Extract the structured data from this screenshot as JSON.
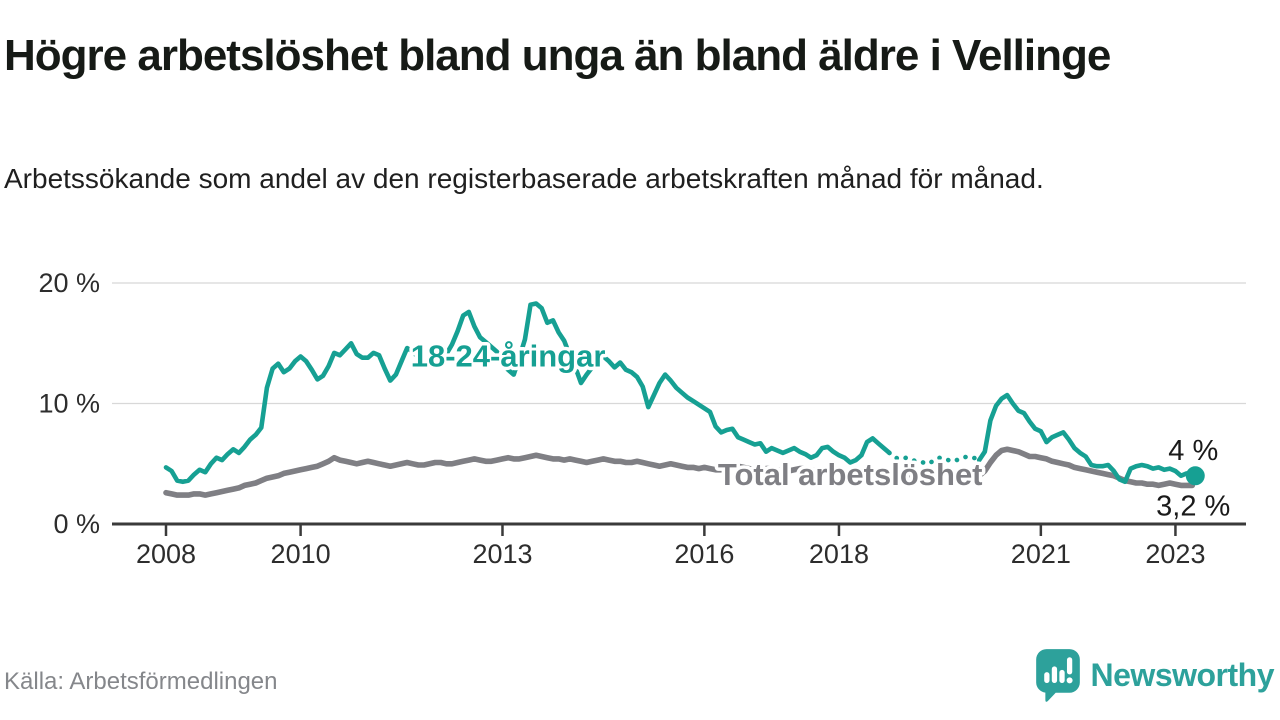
{
  "header": {
    "title": "Högre arbetslöshet bland unga än bland äldre i Vellinge",
    "subtitle": "Arbetssökande som andel av den registerbaserade arbetskraften månad för månad."
  },
  "footer": {
    "source": "Källa: Arbetsförmedlingen",
    "brand": "Newsworthy"
  },
  "colors": {
    "youth_line": "#16a093",
    "total_line": "#7f7f84",
    "axis": "#3a3a3a",
    "tick_label": "#2d2d2d",
    "grid": "#d8d8d8",
    "value_label": "#1a1a1a",
    "logo_teal": "#2da19b",
    "source_text": "#85878b"
  },
  "chart_data": {
    "type": "line",
    "x_unit": "month",
    "x_start": "2008-01",
    "x_end": "2023-04",
    "ylim": [
      0,
      21
    ],
    "grid": true,
    "legend_position": "inline-labels",
    "yticks": [
      {
        "value": 0,
        "label": "0 %"
      },
      {
        "value": 10,
        "label": "10 %"
      },
      {
        "value": 20,
        "label": "20 %"
      }
    ],
    "xticks": [
      {
        "year": 2008,
        "label": "2008"
      },
      {
        "year": 2010,
        "label": "2010"
      },
      {
        "year": 2013,
        "label": "2013"
      },
      {
        "year": 2016,
        "label": "2016"
      },
      {
        "year": 2018,
        "label": "2018"
      },
      {
        "year": 2021,
        "label": "2021"
      },
      {
        "year": 2023,
        "label": "2023"
      }
    ],
    "series": [
      {
        "name": "Total arbetslöshet",
        "color": "#7f7f84",
        "end_label": "3,2 %",
        "end_dot": false,
        "label_anchor": {
          "month_index": 122,
          "value": 4.05
        },
        "values": [
          2.6,
          2.5,
          2.4,
          2.4,
          2.4,
          2.5,
          2.5,
          2.4,
          2.5,
          2.6,
          2.7,
          2.8,
          2.9,
          3.0,
          3.2,
          3.3,
          3.4,
          3.6,
          3.8,
          3.9,
          4.0,
          4.2,
          4.3,
          4.4,
          4.5,
          4.6,
          4.7,
          4.8,
          5.0,
          5.2,
          5.5,
          5.3,
          5.2,
          5.1,
          5.0,
          5.1,
          5.2,
          5.1,
          5.0,
          4.9,
          4.8,
          4.9,
          5.0,
          5.1,
          5.0,
          4.9,
          4.9,
          5.0,
          5.1,
          5.1,
          5.0,
          5.0,
          5.1,
          5.2,
          5.3,
          5.4,
          5.3,
          5.2,
          5.2,
          5.3,
          5.4,
          5.5,
          5.4,
          5.4,
          5.5,
          5.6,
          5.7,
          5.6,
          5.5,
          5.4,
          5.4,
          5.3,
          5.4,
          5.3,
          5.2,
          5.1,
          5.2,
          5.3,
          5.4,
          5.3,
          5.2,
          5.2,
          5.1,
          5.1,
          5.2,
          5.1,
          5.0,
          4.9,
          4.8,
          4.9,
          5.0,
          4.9,
          4.8,
          4.7,
          4.7,
          4.6,
          4.7,
          4.6,
          4.5,
          4.5,
          4.6,
          4.7,
          4.8,
          4.7,
          4.6,
          4.5,
          4.5,
          4.6,
          4.6,
          4.5,
          4.4,
          4.4,
          4.5,
          4.6,
          4.6,
          4.5,
          4.4,
          4.4,
          4.3,
          4.4,
          4.4,
          4.3,
          4.2,
          4.2,
          4.3,
          4.4,
          4.4,
          4.3,
          4.2,
          4.1,
          4.1,
          4.1,
          4.1,
          4.1,
          4.0,
          4.0,
          4.0,
          4.1,
          4.1,
          4.0,
          4.0,
          3.9,
          4.0,
          4.0,
          4.0,
          4.0,
          4.4,
          5.1,
          5.7,
          6.1,
          6.2,
          6.1,
          6.0,
          5.8,
          5.6,
          5.6,
          5.5,
          5.4,
          5.2,
          5.1,
          5.0,
          4.9,
          4.7,
          4.6,
          4.5,
          4.4,
          4.3,
          4.2,
          4.1,
          4.0,
          3.8,
          3.6,
          3.5,
          3.4,
          3.4,
          3.3,
          3.3,
          3.2,
          3.3,
          3.4,
          3.3,
          3.2,
          3.2,
          3.2
        ]
      },
      {
        "name": "18-24-åringar",
        "color": "#16a093",
        "end_label": "4 %",
        "end_dot": true,
        "dashed_month_range": [
          129,
          145
        ],
        "label_anchor": {
          "month_index": 61,
          "value": 13.9
        },
        "values": [
          4.7,
          4.4,
          3.6,
          3.5,
          3.6,
          4.1,
          4.5,
          4.3,
          5.0,
          5.5,
          5.3,
          5.8,
          6.2,
          5.9,
          6.4,
          7.0,
          7.4,
          8.0,
          11.3,
          12.9,
          13.3,
          12.6,
          12.9,
          13.5,
          13.9,
          13.5,
          12.8,
          12.0,
          12.3,
          13.1,
          14.2,
          14.0,
          14.5,
          15.0,
          14.1,
          13.8,
          13.8,
          14.2,
          14.0,
          12.9,
          11.9,
          12.4,
          13.5,
          14.6,
          14.3,
          13.8,
          13.4,
          13.6,
          13.2,
          13.6,
          14.1,
          14.9,
          16.0,
          17.3,
          17.6,
          16.4,
          15.5,
          15.1,
          14.7,
          14.3,
          13.4,
          12.8,
          12.4,
          13.8,
          15.3,
          18.2,
          18.3,
          17.9,
          16.7,
          16.9,
          15.9,
          15.2,
          14.0,
          13.0,
          11.7,
          12.4,
          13.0,
          13.6,
          13.9,
          13.5,
          13.0,
          13.4,
          12.8,
          12.6,
          12.2,
          11.4,
          9.7,
          10.7,
          11.7,
          12.4,
          11.9,
          11.3,
          10.9,
          10.5,
          10.2,
          9.9,
          9.6,
          9.3,
          8.1,
          7.6,
          7.8,
          7.9,
          7.2,
          7.0,
          6.8,
          6.6,
          6.7,
          6.0,
          6.3,
          6.1,
          5.9,
          6.1,
          6.3,
          6.0,
          5.8,
          5.5,
          5.7,
          6.3,
          6.4,
          6.0,
          5.7,
          5.5,
          5.1,
          5.3,
          5.7,
          6.8,
          7.1,
          6.7,
          6.3,
          5.9,
          5.5,
          5.4,
          5.5,
          5.3,
          5.2,
          5.1,
          5.0,
          5.3,
          5.5,
          5.4,
          5.2,
          5.3,
          5.5,
          5.6,
          5.5,
          5.3,
          6.0,
          8.6,
          9.8,
          10.4,
          10.7,
          10.0,
          9.4,
          9.2,
          8.5,
          7.9,
          7.7,
          6.8,
          7.2,
          7.4,
          7.6,
          7.0,
          6.3,
          5.9,
          5.6,
          4.9,
          4.8,
          4.8,
          4.9,
          4.4,
          3.7,
          3.5,
          4.6,
          4.8,
          4.9,
          4.8,
          4.6,
          4.7,
          4.5,
          4.6,
          4.4,
          4.0,
          4.2,
          4.0
        ]
      }
    ]
  }
}
